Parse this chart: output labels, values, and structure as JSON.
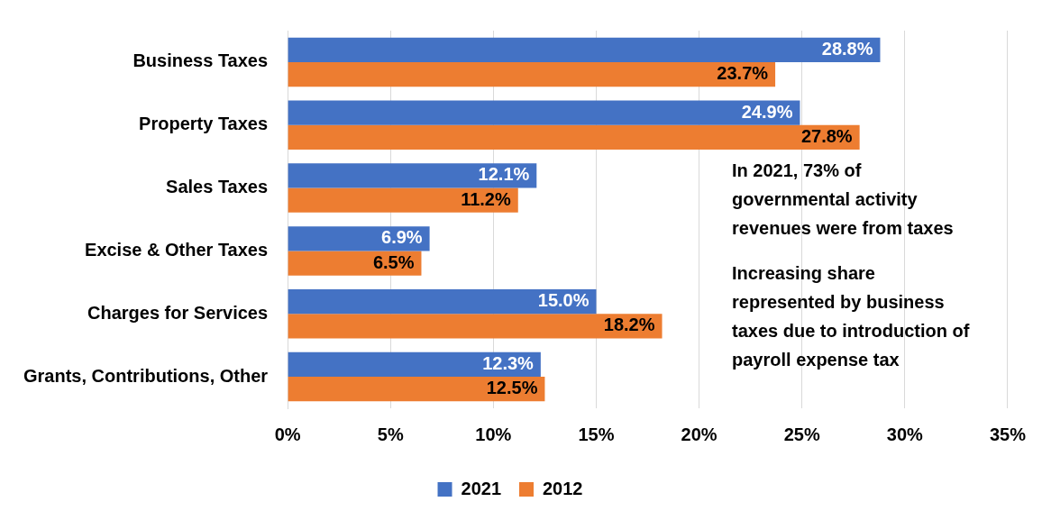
{
  "chart_data": {
    "type": "bar",
    "orientation": "horizontal",
    "categories": [
      "Business Taxes",
      "Property Taxes",
      "Sales Taxes",
      "Excise & Other Taxes",
      "Charges for Services",
      "Grants, Contributions, Other"
    ],
    "series": [
      {
        "name": "2021",
        "color": "#4472c4",
        "values": [
          28.8,
          24.9,
          12.1,
          6.9,
          15.0,
          12.3
        ],
        "value_labels": [
          "28.8%",
          "24.9%",
          "12.1%",
          "6.9%",
          "15.0%",
          "12.3%"
        ]
      },
      {
        "name": "2012",
        "color": "#ed7d31",
        "values": [
          23.7,
          27.8,
          11.2,
          6.5,
          18.2,
          12.5
        ],
        "value_labels": [
          "23.7%",
          "27.8%",
          "11.2%",
          "6.5%",
          "18.2%",
          "12.5%"
        ]
      }
    ],
    "xlim": [
      0,
      35
    ],
    "xticks": [
      {
        "value": 0,
        "label": "0%"
      },
      {
        "value": 5,
        "label": "5%"
      },
      {
        "value": 10,
        "label": "10%"
      },
      {
        "value": 15,
        "label": "15%"
      },
      {
        "value": 20,
        "label": "20%"
      },
      {
        "value": 25,
        "label": "25%"
      },
      {
        "value": 30,
        "label": "30%"
      },
      {
        "value": 35,
        "label": "35%"
      }
    ],
    "grid": "x",
    "legend": "bottom",
    "annotations": [
      "In 2021, 73% of governmental activity revenues were from taxes",
      "Increasing share represented by business taxes due to introduction of payroll expense tax"
    ]
  }
}
